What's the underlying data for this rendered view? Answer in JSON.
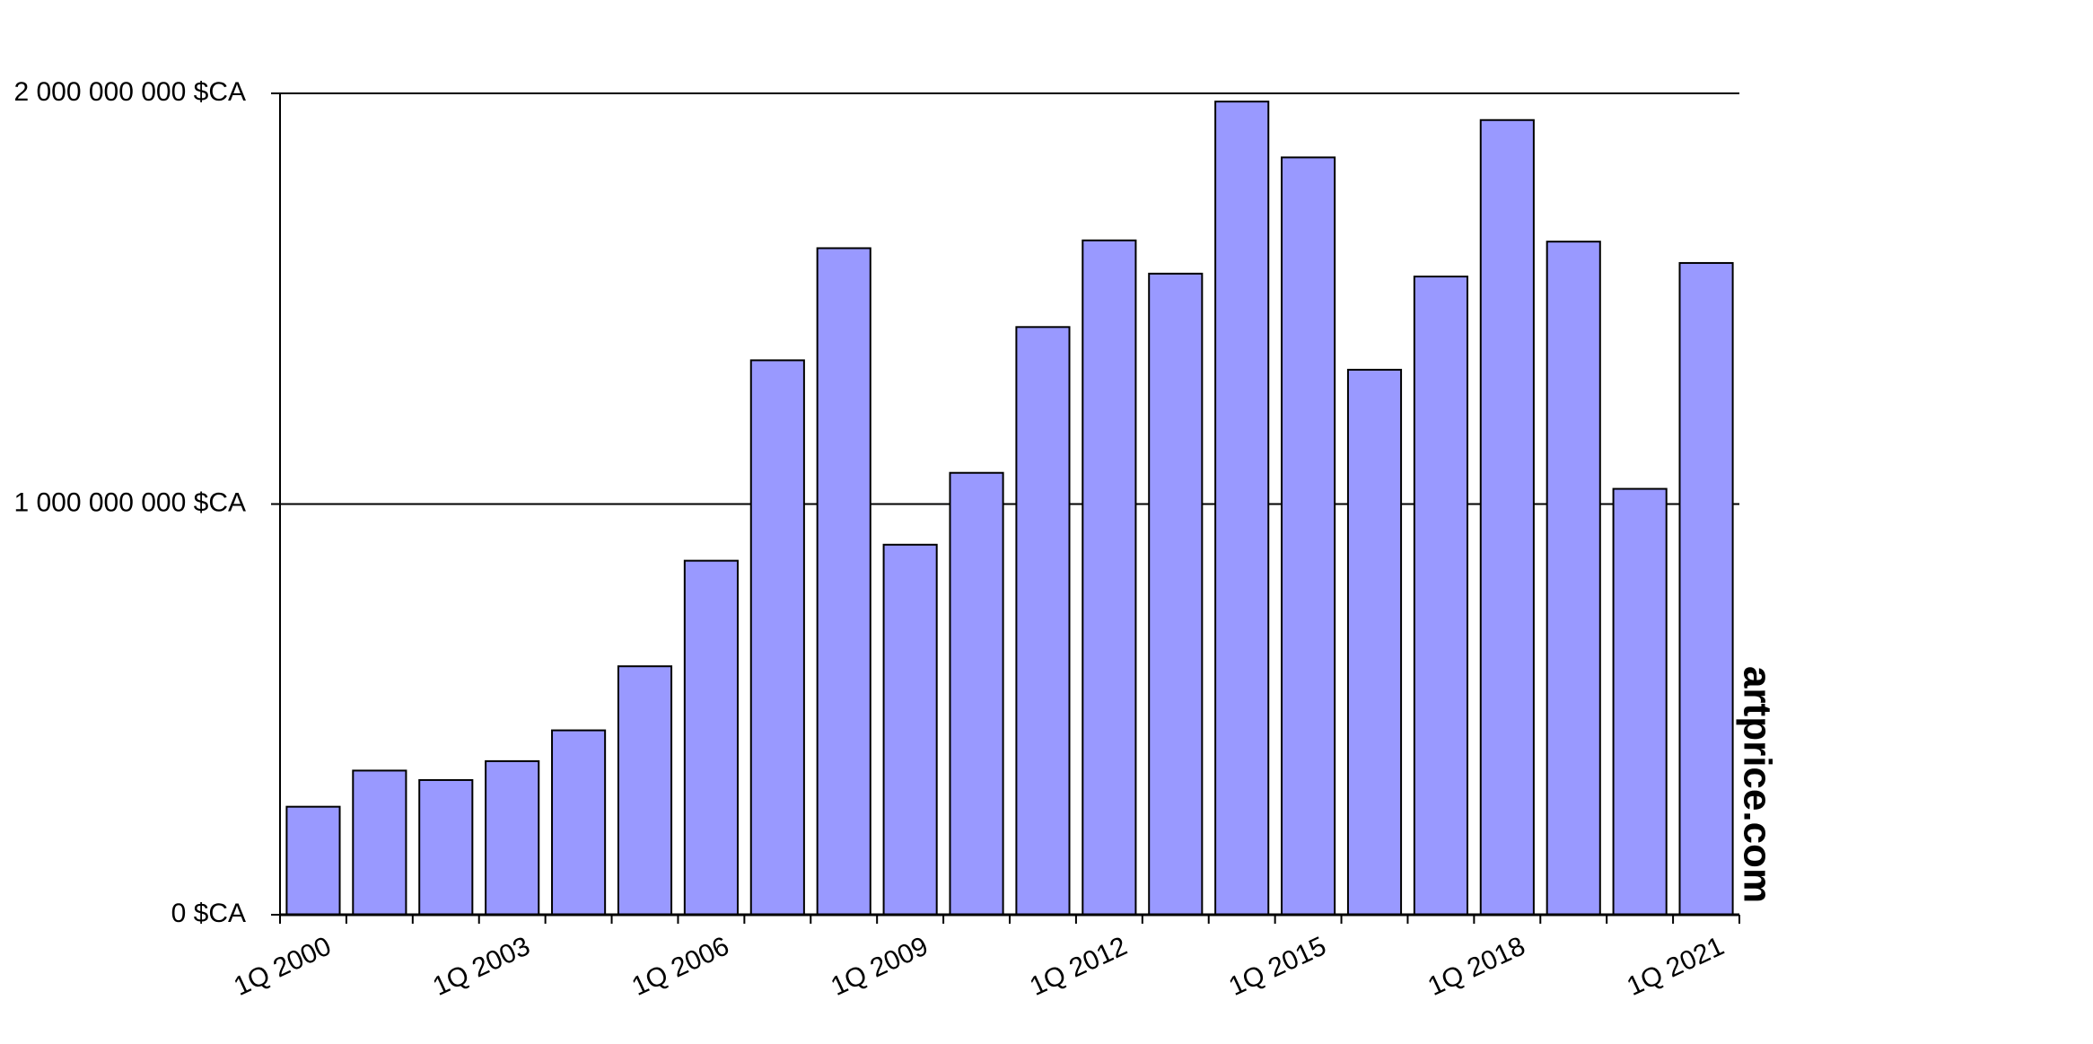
{
  "chart_data": {
    "type": "bar",
    "categories": [
      "1Q 2000",
      null,
      null,
      "1Q 2003",
      null,
      null,
      "1Q 2006",
      null,
      null,
      "1Q 2009",
      null,
      null,
      "1Q 2012",
      null,
      null,
      "1Q 2015",
      null,
      null,
      "1Q 2018",
      null,
      null,
      "1Q 2021"
    ],
    "values": [
      263000000,
      351000000,
      328000000,
      374000000,
      449000000,
      605000000,
      862000000,
      1350000000,
      1623000000,
      901000000,
      1076000000,
      1431000000,
      1642000000,
      1561000000,
      1980000000,
      1844000000,
      1327000000,
      1554000000,
      1935000000,
      1639000000,
      1037000000,
      1587000000
    ],
    "color": "#9999ff",
    "ylim": [
      0,
      2000000000
    ],
    "yticks": [
      {
        "value": 0,
        "label": "0 $CA"
      },
      {
        "value": 1000000000,
        "label": "1 000 000 000 $CA"
      },
      {
        "value": 2000000000,
        "label": "2 000 000 000 $CA"
      }
    ],
    "grid": true,
    "watermark": "artprice.com"
  }
}
